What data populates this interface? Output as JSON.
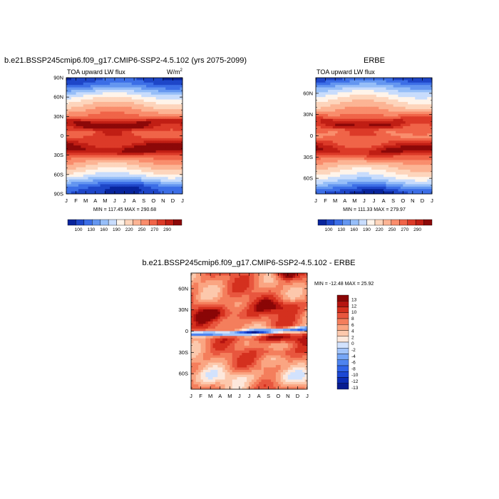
{
  "chart_data": [
    {
      "type": "heatmap",
      "title": "b.e21.BSSP245cmip6.f09_g17.CMIP6-SSP2-4.5.102 (yrs 2075-2099)",
      "subtitle_left": "TOA upward LW flux",
      "units": "W/m",
      "units_sup": "2",
      "x_ticks": [
        "J",
        "F",
        "M",
        "A",
        "M",
        "J",
        "J",
        "A",
        "S",
        "O",
        "N",
        "D",
        "J"
      ],
      "y_ticks": [
        "90N",
        "60N",
        "30N",
        "0",
        "30S",
        "60S",
        "90S"
      ],
      "minmax": "MIN = 117.45 MAX = 290.68",
      "colorbar_labels": [
        "100",
        "130",
        "160",
        "190",
        "220",
        "250",
        "270",
        "290"
      ],
      "value_range": [
        117.45,
        290.68
      ]
    },
    {
      "type": "heatmap",
      "title": "ERBE",
      "subtitle_left": "TOA upward LW flux",
      "x_ticks": [
        "J",
        "F",
        "M",
        "A",
        "M",
        "J",
        "J",
        "A",
        "S",
        "O",
        "N",
        "D",
        "J"
      ],
      "y_ticks": [
        "60N",
        "30N",
        "0",
        "30S",
        "60S"
      ],
      "minmax": "MIN = 111.33 MAX = 279.97",
      "colorbar_labels": [
        "100",
        "130",
        "160",
        "190",
        "220",
        "250",
        "270",
        "290"
      ],
      "value_range": [
        111.33,
        279.97
      ]
    },
    {
      "type": "heatmap",
      "title": "b.e21.BSSP245cmip6.f09_g17.CMIP6-SSP2-4.5.102 - ERBE",
      "x_ticks": [
        "J",
        "F",
        "M",
        "A",
        "M",
        "J",
        "J",
        "A",
        "S",
        "O",
        "N",
        "D",
        "J"
      ],
      "y_ticks": [
        "60N",
        "30N",
        "0",
        "30S",
        "60S"
      ],
      "minmax": "MIN = -12.48 MAX =  25.92",
      "colorbar_labels": [
        "13",
        "12",
        "10",
        "8",
        "6",
        "4",
        "2",
        "0",
        "-2",
        "-4",
        "-6",
        "-8",
        "-10",
        "-12",
        "-13"
      ],
      "value_range": [
        -12.48,
        25.92
      ]
    }
  ],
  "colors": {
    "flux_palette": [
      "#08249c",
      "#1e46c8",
      "#3c6ee6",
      "#6496f0",
      "#96bef8",
      "#c8dcfc",
      "#fff4ea",
      "#fdd5bc",
      "#fcb494",
      "#f98d6c",
      "#f06448",
      "#dc3a28",
      "#c01e14",
      "#8c0808"
    ],
    "diff_palette": [
      "#081c90",
      "#0c2cb4",
      "#1c48d4",
      "#3064e8",
      "#4e84f0",
      "#76a6f6",
      "#a2c4fa",
      "#d2e2fd",
      "#fde8dc",
      "#fcc8ac",
      "#faa582",
      "#f47e5c",
      "#e8563e",
      "#d4301e",
      "#b41410",
      "#8a0606"
    ]
  }
}
